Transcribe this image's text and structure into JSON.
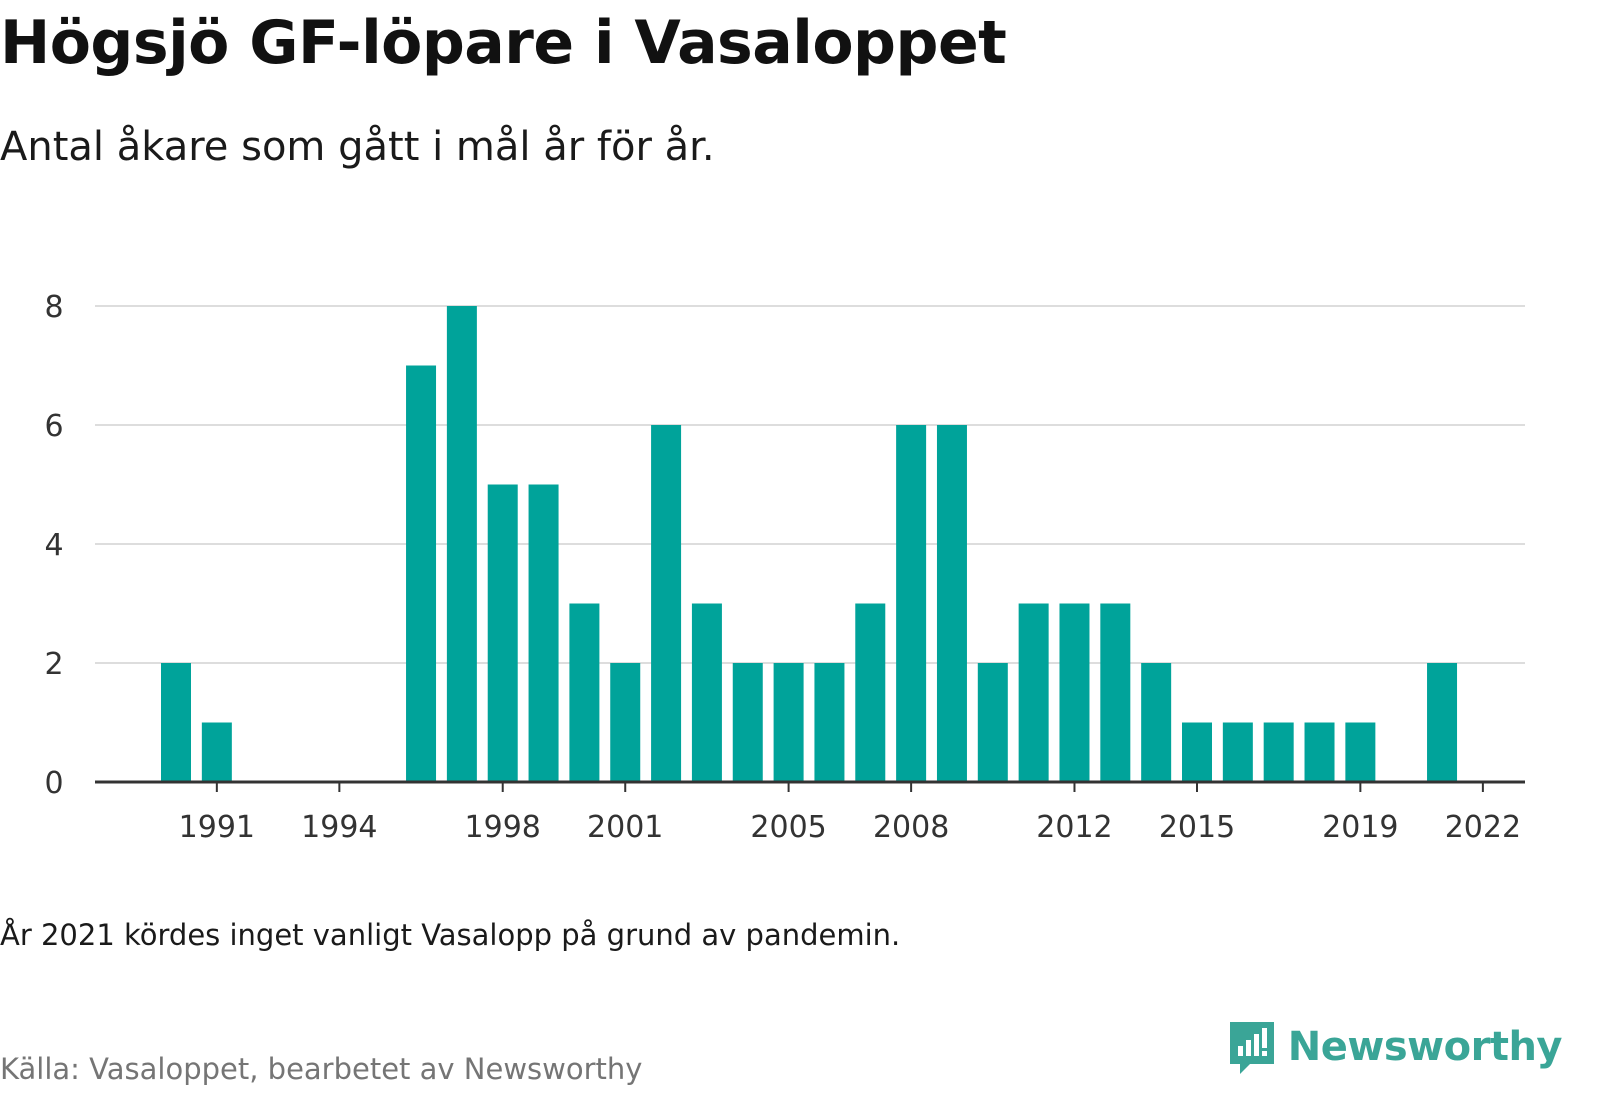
{
  "title": "Högsjö GF-löpare i Vasaloppet",
  "subtitle": "Antal åkare som gått i mål år för år.",
  "note": "År 2021 kördes inget vanligt Vasalopp på grund av pandemin.",
  "source": "Källa: Vasaloppet, bearbetet av Newsworthy",
  "brand": "Newsworthy",
  "colors": {
    "bar": "#00a39a",
    "grid": "#dddddd",
    "axis": "#333333",
    "brand": "#3aa597"
  },
  "chart_data": {
    "type": "bar",
    "x": [
      1990,
      1991,
      1992,
      1993,
      1994,
      1995,
      1996,
      1997,
      1998,
      1999,
      2000,
      2001,
      2002,
      2003,
      2004,
      2005,
      2006,
      2007,
      2008,
      2009,
      2010,
      2011,
      2012,
      2013,
      2014,
      2015,
      2016,
      2017,
      2018,
      2019,
      2020,
      2021,
      2022
    ],
    "values": [
      2,
      1,
      0,
      0,
      0,
      0,
      7,
      8,
      5,
      5,
      3,
      2,
      6,
      3,
      2,
      2,
      2,
      3,
      6,
      6,
      2,
      3,
      3,
      3,
      2,
      1,
      1,
      1,
      1,
      1,
      0,
      2,
      0
    ],
    "x_tick_labels": [
      "1991",
      "1994",
      "1998",
      "2001",
      "2005",
      "2008",
      "2012",
      "2015",
      "2019",
      "2022"
    ],
    "y_ticks": [
      0,
      2,
      4,
      6,
      8
    ],
    "ylim": [
      0,
      8
    ],
    "grid": true,
    "legend": "none"
  }
}
